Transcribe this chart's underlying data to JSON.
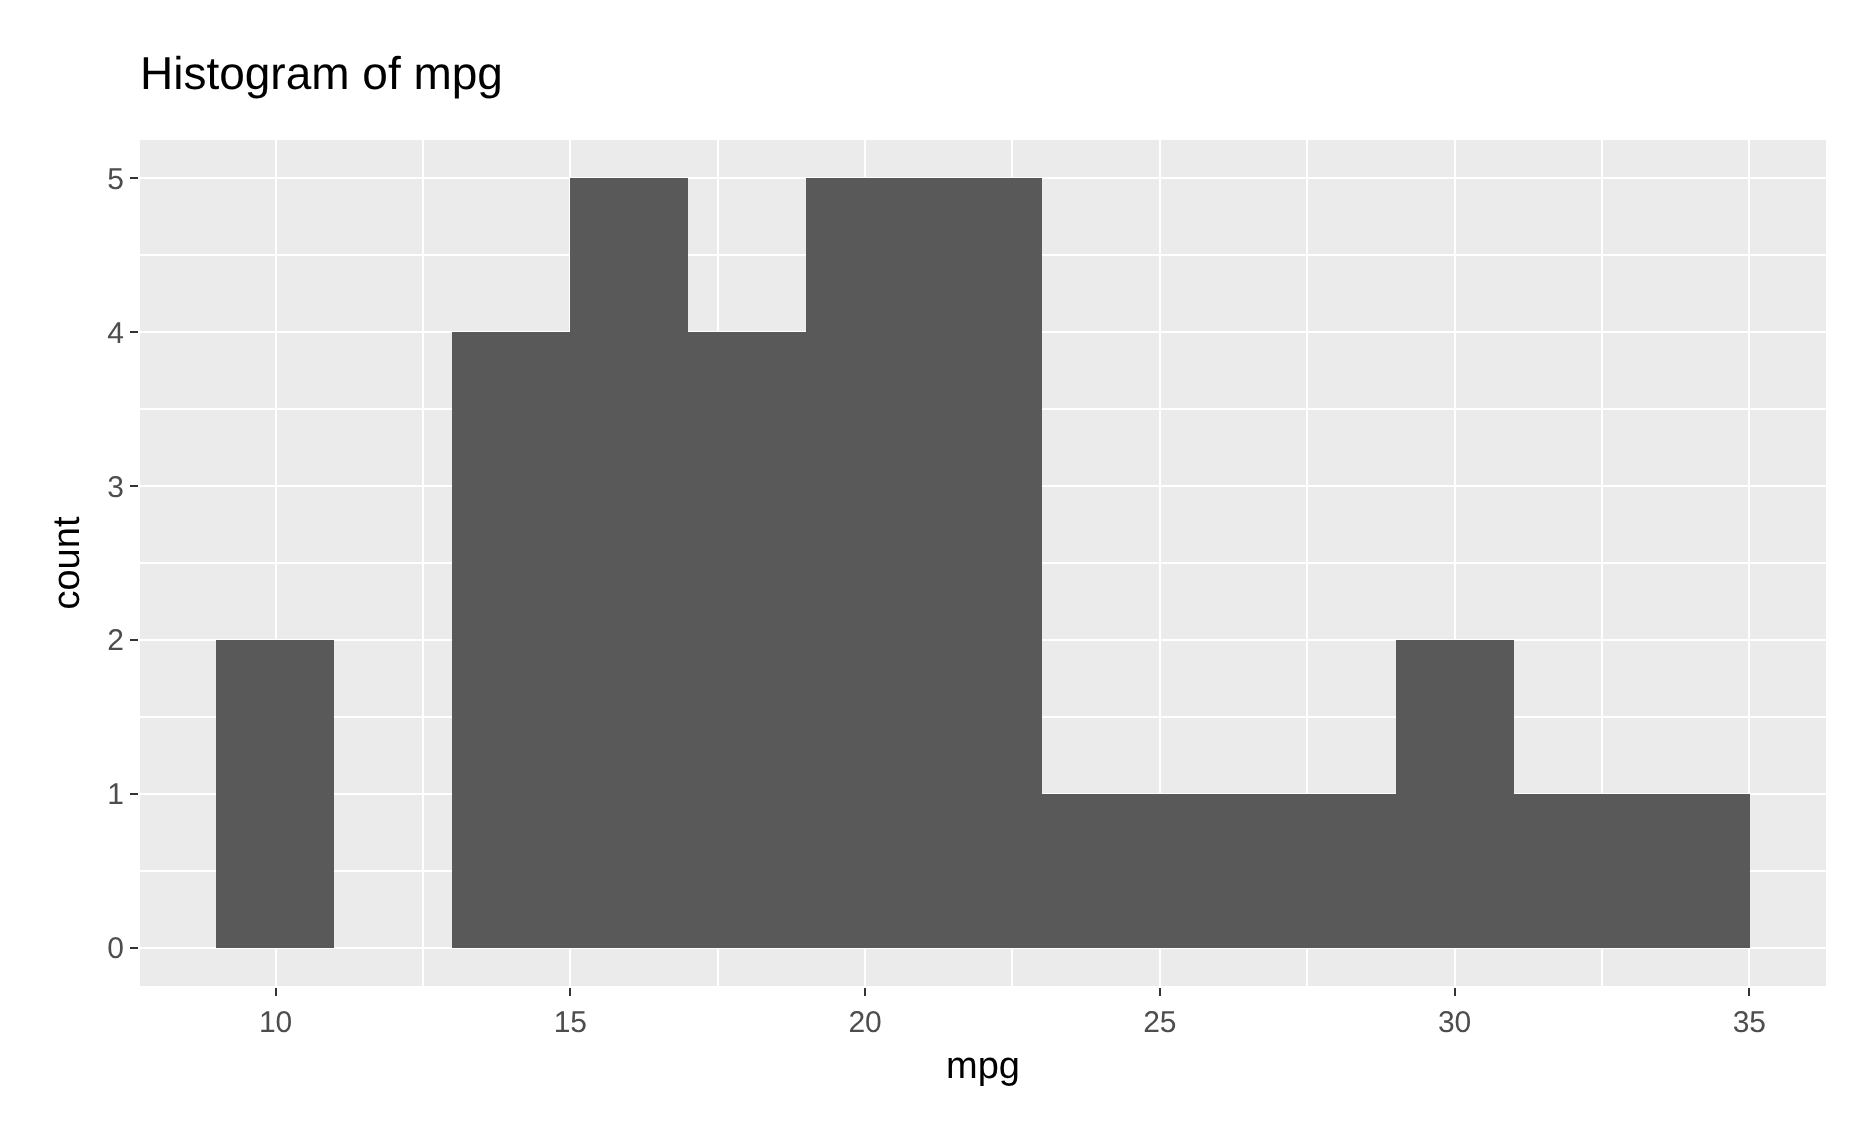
{
  "chart_data": {
    "type": "histogram",
    "title": "Histogram of mpg",
    "xlabel": "mpg",
    "ylabel": "count",
    "bins": [
      9,
      11,
      13,
      15,
      17,
      19,
      21,
      23,
      25,
      27,
      29,
      31,
      33,
      35
    ],
    "values": [
      2,
      0,
      4,
      5,
      4,
      5,
      5,
      1,
      1,
      1,
      2,
      1,
      1
    ],
    "color": "#595959",
    "xlim": [
      7.7,
      36.3
    ],
    "xticks": [
      10,
      15,
      20,
      25,
      30,
      35
    ],
    "ylim": [
      -0.25,
      5.25
    ],
    "yticks": [
      0,
      1,
      2,
      3,
      4,
      5
    ],
    "grid": true,
    "legend": false
  }
}
